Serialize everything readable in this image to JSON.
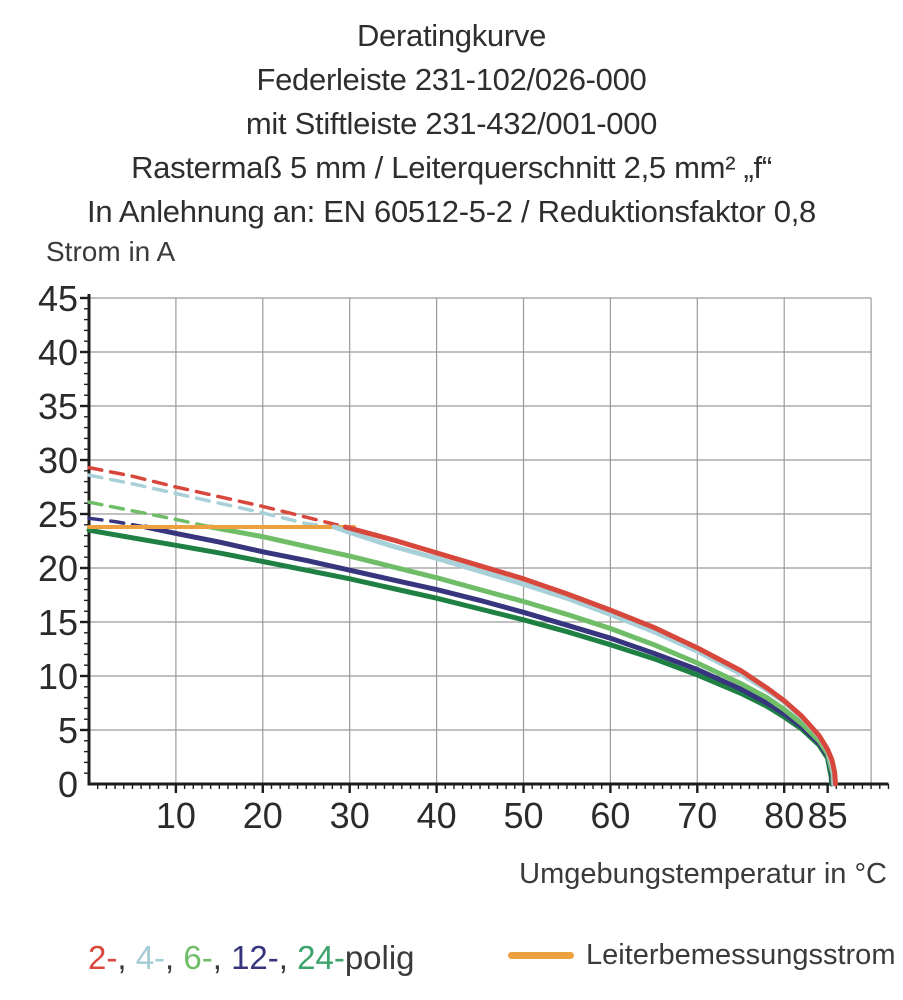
{
  "header": {
    "lines": [
      "Deratingkurve",
      "Federleiste 231-102/026-000",
      "mit Stiftleiste 231-432/001-000",
      "Rastermaß 5 mm / Leiterquerschnitt 2,5 mm² „f“",
      "In Anlehnung an: EN 60512-5-2 / Reduktionsfaktor 0,8"
    ]
  },
  "chart_data": {
    "type": "line",
    "title": "Deratingkurve",
    "xlabel": "Umgebungstemperatur in °C",
    "ylabel": "Strom in A",
    "xlim": [
      0,
      92
    ],
    "ylim": [
      0,
      45
    ],
    "grid": true,
    "grid_color": "#9b9b9b",
    "axis_color": "#1d1d1d",
    "tick_label_color": "#2b2b2b",
    "x_gridlines": [
      10,
      20,
      30,
      40,
      50,
      60,
      70,
      80,
      90
    ],
    "y_gridlines": [
      5,
      10,
      15,
      20,
      25,
      30,
      35,
      40,
      45
    ],
    "x_tick_values": [
      10,
      20,
      30,
      40,
      50,
      60,
      70,
      80,
      85
    ],
    "y_tick_values": [
      0,
      5,
      10,
      15,
      20,
      25,
      30,
      35,
      40,
      45
    ],
    "x_minor_step": 1,
    "y_minor_step": 1,
    "series": [
      {
        "name": "24-polig",
        "color": "#1f8044",
        "solid": [
          [
            0,
            23.5
          ],
          [
            5,
            22.8
          ],
          [
            10,
            22.1
          ],
          [
            15,
            21.4
          ],
          [
            20,
            20.6
          ],
          [
            25,
            19.8
          ],
          [
            30,
            19.0
          ],
          [
            35,
            18.1
          ],
          [
            40,
            17.2
          ],
          [
            45,
            16.2
          ],
          [
            50,
            15.2
          ],
          [
            55,
            14.1
          ],
          [
            60,
            12.9
          ],
          [
            65,
            11.6
          ],
          [
            70,
            10.1
          ],
          [
            75,
            8.4
          ],
          [
            78,
            7.2
          ],
          [
            80,
            6.2
          ],
          [
            82,
            5.1
          ],
          [
            84,
            3.6
          ],
          [
            85,
            2.4
          ],
          [
            85.2,
            1.5
          ],
          [
            85.4,
            0.7
          ],
          [
            85.45,
            0
          ]
        ]
      },
      {
        "name": "12-polig",
        "color": "#36357e",
        "dashed": [
          [
            0,
            24.6
          ],
          [
            3,
            24.3
          ],
          [
            6.5,
            23.8
          ]
        ],
        "solid": [
          [
            6.5,
            23.8
          ],
          [
            10,
            23.2
          ],
          [
            15,
            22.4
          ],
          [
            20,
            21.5
          ],
          [
            25,
            20.7
          ],
          [
            30,
            19.8
          ],
          [
            35,
            18.9
          ],
          [
            40,
            18.0
          ],
          [
            45,
            17.0
          ],
          [
            50,
            15.9
          ],
          [
            55,
            14.7
          ],
          [
            60,
            13.5
          ],
          [
            65,
            12.1
          ],
          [
            70,
            10.6
          ],
          [
            75,
            8.8
          ],
          [
            78,
            7.5
          ],
          [
            80,
            6.5
          ],
          [
            82,
            5.3
          ],
          [
            84,
            3.8
          ],
          [
            85,
            2.6
          ],
          [
            85.3,
            1.6
          ],
          [
            85.5,
            0.8
          ],
          [
            85.55,
            0
          ]
        ]
      },
      {
        "name": "6-polig",
        "color": "#70bd68",
        "dashed": [
          [
            0,
            26.1
          ],
          [
            5,
            25.3
          ],
          [
            10,
            24.5
          ],
          [
            14,
            23.8
          ]
        ],
        "solid": [
          [
            14,
            23.8
          ],
          [
            20,
            22.9
          ],
          [
            25,
            22.0
          ],
          [
            30,
            21.1
          ],
          [
            35,
            20.1
          ],
          [
            40,
            19.1
          ],
          [
            45,
            18.0
          ],
          [
            50,
            16.9
          ],
          [
            55,
            15.7
          ],
          [
            60,
            14.4
          ],
          [
            65,
            12.9
          ],
          [
            70,
            11.2
          ],
          [
            75,
            9.3
          ],
          [
            78,
            8.0
          ],
          [
            80,
            6.9
          ],
          [
            82,
            5.6
          ],
          [
            84,
            4.0
          ],
          [
            85,
            2.8
          ],
          [
            85.3,
            1.8
          ],
          [
            85.6,
            0.9
          ],
          [
            85.65,
            0
          ]
        ]
      },
      {
        "name": "Leiterbemessungsstrom",
        "color": "#eda03f",
        "width": 4,
        "solid": [
          [
            0,
            23.8
          ],
          [
            30.5,
            23.8
          ]
        ]
      },
      {
        "name": "4-polig",
        "color": "#a8d0d8",
        "dashed": [
          [
            0,
            28.6
          ],
          [
            5,
            27.8
          ],
          [
            10,
            26.9
          ],
          [
            15,
            26.0
          ],
          [
            20,
            25.1
          ],
          [
            25,
            24.1
          ],
          [
            28.2,
            23.8
          ]
        ],
        "solid": [
          [
            28.2,
            23.8
          ],
          [
            30,
            23.3
          ],
          [
            35,
            22.0
          ],
          [
            40,
            20.9
          ],
          [
            45,
            19.7
          ],
          [
            50,
            18.5
          ],
          [
            55,
            17.2
          ],
          [
            60,
            15.7
          ],
          [
            65,
            14.1
          ],
          [
            70,
            12.3
          ],
          [
            75,
            10.2
          ],
          [
            78,
            8.7
          ],
          [
            80,
            7.6
          ],
          [
            82,
            6.2
          ],
          [
            84,
            4.4
          ],
          [
            85,
            3.1
          ],
          [
            85.4,
            2.1
          ],
          [
            85.7,
            1.0
          ],
          [
            85.75,
            0
          ]
        ]
      },
      {
        "name": "2-polig",
        "color": "#d7473c",
        "dashed": [
          [
            0,
            29.3
          ],
          [
            5,
            28.5
          ],
          [
            10,
            27.5
          ],
          [
            15,
            26.6
          ],
          [
            20,
            25.7
          ],
          [
            25,
            24.7
          ],
          [
            29.5,
            23.8
          ]
        ],
        "solid": [
          [
            29.5,
            23.8
          ],
          [
            35,
            22.6
          ],
          [
            40,
            21.4
          ],
          [
            45,
            20.2
          ],
          [
            50,
            19.0
          ],
          [
            55,
            17.6
          ],
          [
            60,
            16.1
          ],
          [
            65,
            14.5
          ],
          [
            70,
            12.6
          ],
          [
            75,
            10.5
          ],
          [
            78,
            8.9
          ],
          [
            80,
            7.7
          ],
          [
            82,
            6.3
          ],
          [
            84,
            4.5
          ],
          [
            85,
            3.2
          ],
          [
            85.5,
            2.2
          ],
          [
            85.8,
            1.1
          ],
          [
            85.9,
            0
          ]
        ]
      }
    ]
  },
  "legend": {
    "poles": [
      {
        "label": "2-",
        "color": "#d7473c"
      },
      {
        "label": "4-",
        "color": "#a5ccd6"
      },
      {
        "label": "6-",
        "color": "#70bd68"
      },
      {
        "label": "12-",
        "color": "#36357e"
      },
      {
        "label": "24-",
        "color": "#3da36d"
      }
    ],
    "separator": ", ",
    "suffix": "polig",
    "rated_label": "Leiterbemessungsstrom",
    "rated_color": "#eda03f"
  }
}
